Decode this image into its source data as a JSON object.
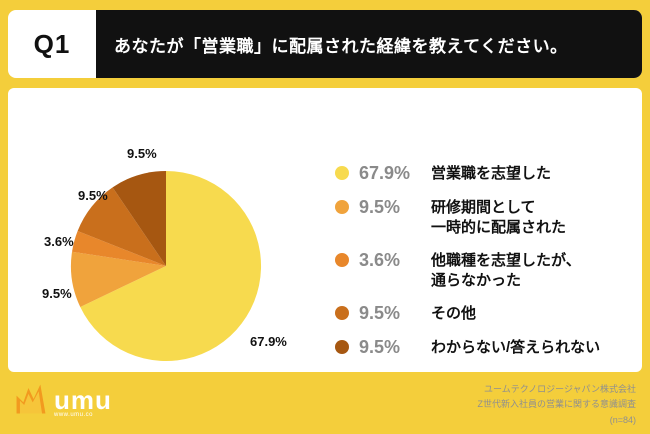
{
  "header": {
    "question_number": "Q1",
    "question_text": "あなたが「営業職」に配属された経緯を教えてください。"
  },
  "chart_data": {
    "type": "pie",
    "start_angle_deg": -90,
    "direction": "clockwise",
    "segments": [
      {
        "id": "sales-desired",
        "label": "営業職を志望した",
        "value": 67.9,
        "pct_label": "67.9%",
        "color": "#F7DA4E"
      },
      {
        "id": "training-temp",
        "label": "研修期間として\n一時的に配属された",
        "value": 9.5,
        "pct_label": "9.5%",
        "color": "#F0A33C"
      },
      {
        "id": "other-job-desired",
        "label": "他職種を志望したが、\n通らなかった",
        "value": 3.6,
        "pct_label": "3.6%",
        "color": "#E8872B"
      },
      {
        "id": "other",
        "label": "その他",
        "value": 9.5,
        "pct_label": "9.5%",
        "color": "#C96F1C"
      },
      {
        "id": "dont-know",
        "label": "わからない/答えられない",
        "value": 9.5,
        "pct_label": "9.5%",
        "color": "#A65711"
      }
    ]
  },
  "footer": {
    "logo_text": "umu",
    "logo_subtext": "www.umu.co",
    "credit_line1": "ユームテクノロジージャパン株式会社",
    "credit_line2": "Z世代新入社員の営業に関する意識調査",
    "credit_line3": "(n=84)"
  },
  "colors": {
    "background": "#F4CE3B",
    "header_bar": "#111111",
    "card": "#FFFFFF"
  }
}
